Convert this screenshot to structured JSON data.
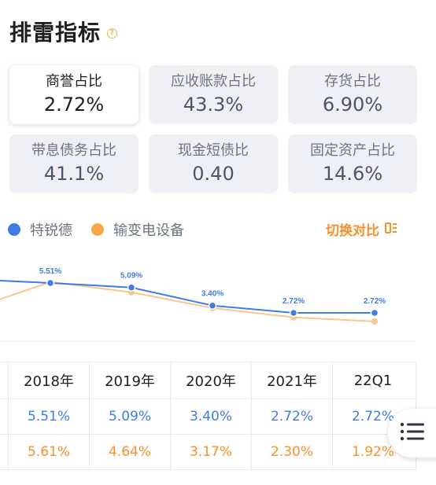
{
  "header": {
    "title": "排雷指标",
    "help_glyph": "?"
  },
  "cards": [
    {
      "label": "商誉占比",
      "value": "2.72%",
      "active": true
    },
    {
      "label": "应收账款占比",
      "value": "43.3%",
      "active": false
    },
    {
      "label": "存货占比",
      "value": "6.90%",
      "active": false
    },
    {
      "label": "带息债务占比",
      "value": "41.1%",
      "active": false
    },
    {
      "label": "现金短债比",
      "value": "0.40",
      "active": false
    },
    {
      "label": "固定资产占比",
      "value": "14.6%",
      "active": false
    }
  ],
  "legend": [
    {
      "name": "特锐德",
      "color": "#3f7ce8"
    },
    {
      "name": "输变电设备",
      "color": "#f7a44a"
    }
  ],
  "switch": {
    "label": "切换对比",
    "icon": "compare-icon"
  },
  "chart_data": {
    "type": "line",
    "x": [
      "2018年",
      "2019年",
      "2020年",
      "2021年",
      "22Q1"
    ],
    "series": [
      {
        "name": "特锐德",
        "color": "#3f7ce8",
        "values": [
          5.51,
          5.09,
          3.4,
          2.72,
          2.72
        ],
        "labels": [
          "5.51%",
          "5.09%",
          "3.40%",
          "2.72%",
          "2.72%"
        ]
      },
      {
        "name": "输变电设备",
        "color": "#f7a44a",
        "values": [
          5.61,
          4.64,
          3.17,
          2.3,
          1.92
        ]
      }
    ],
    "grid": false
  },
  "table": {
    "headers": [
      "2018年",
      "2019年",
      "2020年",
      "2021年",
      "22Q1"
    ],
    "rows": [
      {
        "series": "特锐德",
        "values": [
          "5.51%",
          "5.09%",
          "3.40%",
          "2.72%",
          "2.72%"
        ]
      },
      {
        "series": "输变电设备",
        "values": [
          "5.61%",
          "4.64%",
          "3.17%",
          "2.30%",
          "1.92%"
        ]
      }
    ]
  },
  "menu": {
    "icon": "list-menu-icon"
  }
}
